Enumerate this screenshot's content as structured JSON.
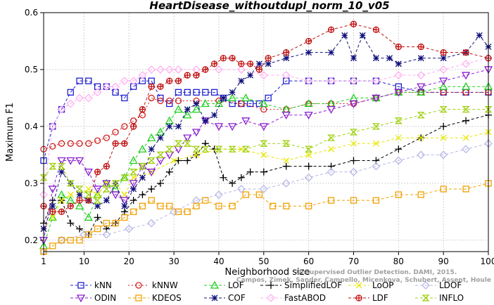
{
  "chart_data": {
    "type": "line",
    "title": "HeartDisease_withoutdupl_norm_10_v05",
    "xlabel": "Neighborhood size",
    "ylabel": "Maximum F1",
    "xlim": [
      1,
      100
    ],
    "ylim": [
      0.18,
      0.6
    ],
    "xticks": [
      1,
      10,
      20,
      30,
      40,
      50,
      60,
      70,
      80,
      90,
      100
    ],
    "yticks": [
      0.2,
      0.3,
      0.4,
      0.5,
      0.6
    ],
    "legend_placement": "bottom",
    "series": [
      {
        "name": "kNN",
        "color": "#1f1fd0",
        "marker": "square",
        "dash": "4,3",
        "x": [
          1,
          3,
          5,
          7,
          9,
          11,
          13,
          15,
          17,
          19,
          21,
          23,
          25,
          27,
          29,
          31,
          33,
          35,
          37,
          39,
          41,
          43,
          45,
          47,
          49,
          51,
          55,
          60,
          65,
          70,
          75,
          80,
          85,
          90,
          95,
          100
        ],
        "y": [
          0.34,
          0.4,
          0.43,
          0.46,
          0.48,
          0.48,
          0.47,
          0.47,
          0.46,
          0.45,
          0.47,
          0.48,
          0.48,
          0.45,
          0.44,
          0.46,
          0.46,
          0.46,
          0.46,
          0.46,
          0.45,
          0.44,
          0.44,
          0.44,
          0.44,
          0.45,
          0.48,
          0.48,
          0.48,
          0.48,
          0.48,
          0.47,
          0.46,
          0.46,
          0.46,
          0.46
        ]
      },
      {
        "name": "kNNW",
        "color": "#d01f1f",
        "marker": "circle",
        "dash": "2,3",
        "x": [
          1,
          3,
          5,
          7,
          9,
          11,
          13,
          15,
          17,
          19,
          21,
          23,
          25,
          27,
          29,
          31,
          35,
          40,
          45,
          50,
          55,
          60,
          65,
          70,
          75,
          80,
          85,
          90,
          95,
          100
        ],
        "y": [
          0.36,
          0.365,
          0.37,
          0.37,
          0.37,
          0.37,
          0.375,
          0.38,
          0.39,
          0.4,
          0.41,
          0.42,
          0.45,
          0.445,
          0.445,
          0.445,
          0.445,
          0.445,
          0.44,
          0.43,
          0.43,
          0.44,
          0.44,
          0.44,
          0.45,
          0.46,
          0.46,
          0.46,
          0.46,
          0.46
        ]
      },
      {
        "name": "LOF",
        "color": "#1fd01f",
        "marker": "triangle",
        "dash": "4,3",
        "x": [
          1,
          3,
          5,
          7,
          9,
          11,
          13,
          15,
          17,
          19,
          21,
          23,
          25,
          27,
          29,
          31,
          33,
          35,
          37,
          40,
          43,
          46,
          50,
          55,
          60,
          65,
          70,
          75,
          80,
          85,
          90,
          95,
          100
        ],
        "y": [
          0.19,
          0.24,
          0.28,
          0.27,
          0.26,
          0.24,
          0.28,
          0.3,
          0.29,
          0.31,
          0.34,
          0.36,
          0.38,
          0.39,
          0.41,
          0.43,
          0.42,
          0.43,
          0.44,
          0.44,
          0.45,
          0.45,
          0.44,
          0.43,
          0.44,
          0.44,
          0.45,
          0.45,
          0.46,
          0.46,
          0.47,
          0.47,
          0.47
        ]
      },
      {
        "name": "SimplifiedLOF",
        "color": "#000000",
        "marker": "plus",
        "dash": "4,3",
        "x": [
          1,
          3,
          5,
          7,
          9,
          11,
          13,
          15,
          17,
          19,
          21,
          23,
          25,
          27,
          29,
          31,
          33,
          35,
          37,
          39,
          41,
          43,
          45,
          47,
          50,
          55,
          60,
          65,
          70,
          75,
          80,
          85,
          90,
          95,
          100
        ],
        "y": [
          0.23,
          0.27,
          0.27,
          0.23,
          0.22,
          0.21,
          0.24,
          0.22,
          0.23,
          0.25,
          0.27,
          0.28,
          0.29,
          0.3,
          0.32,
          0.34,
          0.34,
          0.35,
          0.37,
          0.36,
          0.31,
          0.3,
          0.31,
          0.32,
          0.32,
          0.33,
          0.33,
          0.33,
          0.34,
          0.34,
          0.36,
          0.38,
          0.4,
          0.41,
          0.42
        ]
      },
      {
        "name": "LoOP",
        "color": "#e8e800",
        "marker": "x",
        "dash": "4,3",
        "x": [
          1,
          3,
          5,
          7,
          9,
          11,
          13,
          15,
          17,
          19,
          21,
          25,
          30,
          35,
          40,
          45,
          50,
          55,
          60,
          65,
          70,
          75,
          80,
          85,
          90,
          95,
          100
        ],
        "y": [
          0.22,
          0.24,
          0.27,
          0.28,
          0.28,
          0.29,
          0.28,
          0.3,
          0.3,
          0.28,
          0.31,
          0.32,
          0.34,
          0.35,
          0.36,
          0.36,
          0.35,
          0.34,
          0.35,
          0.36,
          0.37,
          0.37,
          0.38,
          0.38,
          0.38,
          0.38,
          0.39
        ]
      },
      {
        "name": "LDOF",
        "color": "#b8b8e8",
        "marker": "diamond",
        "dash": "4,3",
        "x": [
          1,
          5,
          10,
          15,
          20,
          25,
          30,
          35,
          40,
          45,
          50,
          55,
          60,
          65,
          70,
          75,
          80,
          85,
          90,
          95,
          100
        ],
        "y": [
          0.18,
          0.2,
          0.21,
          0.21,
          0.22,
          0.23,
          0.25,
          0.27,
          0.28,
          0.29,
          0.29,
          0.3,
          0.31,
          0.32,
          0.32,
          0.33,
          0.34,
          0.35,
          0.35,
          0.36,
          0.37
        ]
      },
      {
        "name": "ODIN",
        "color": "#8b1fd0",
        "marker": "triangle-down",
        "dash": "4,3",
        "x": [
          1,
          3,
          5,
          7,
          9,
          11,
          13,
          15,
          17,
          19,
          21,
          23,
          25,
          27,
          29,
          31,
          33,
          35,
          37,
          40,
          43,
          46,
          50,
          55,
          60,
          65,
          70,
          75,
          80,
          85,
          90,
          95,
          100
        ],
        "y": [
          0.2,
          0.29,
          0.34,
          0.34,
          0.34,
          0.32,
          0.29,
          0.3,
          0.28,
          0.27,
          0.3,
          0.33,
          0.32,
          0.34,
          0.35,
          0.36,
          0.38,
          0.39,
          0.41,
          0.4,
          0.4,
          0.41,
          0.4,
          0.42,
          0.42,
          0.43,
          0.44,
          0.45,
          0.46,
          0.47,
          0.48,
          0.49,
          0.5
        ]
      },
      {
        "name": "KDEOS",
        "color": "#f0a000",
        "marker": "square",
        "dash": "4,3",
        "x": [
          1,
          3,
          5,
          7,
          9,
          11,
          13,
          15,
          17,
          19,
          21,
          23,
          25,
          27,
          29,
          31,
          33,
          35,
          37,
          40,
          43,
          46,
          49,
          52,
          55,
          60,
          65,
          70,
          75,
          80,
          85,
          90,
          95,
          100
        ],
        "y": [
          0.18,
          0.19,
          0.2,
          0.2,
          0.2,
          0.21,
          0.22,
          0.23,
          0.23,
          0.24,
          0.25,
          0.26,
          0.27,
          0.26,
          0.26,
          0.25,
          0.25,
          0.26,
          0.27,
          0.26,
          0.26,
          0.28,
          0.28,
          0.26,
          0.26,
          0.26,
          0.27,
          0.27,
          0.27,
          0.28,
          0.28,
          0.29,
          0.29,
          0.3
        ]
      },
      {
        "name": "COF",
        "color": "#10107a",
        "marker": "asterisk",
        "dash": "4,3",
        "x": [
          1,
          3,
          5,
          7,
          9,
          11,
          13,
          15,
          17,
          19,
          21,
          23,
          25,
          27,
          29,
          31,
          33,
          35,
          37,
          39,
          41,
          43,
          45,
          47,
          49,
          51,
          55,
          60,
          65,
          68,
          70,
          72,
          75,
          78,
          80,
          85,
          90,
          95,
          98,
          100
        ],
        "y": [
          0.22,
          0.26,
          0.32,
          0.3,
          0.28,
          0.27,
          0.26,
          0.27,
          0.3,
          0.26,
          0.29,
          0.31,
          0.36,
          0.38,
          0.4,
          0.4,
          0.43,
          0.44,
          0.41,
          0.42,
          0.45,
          0.46,
          0.48,
          0.49,
          0.51,
          0.51,
          0.52,
          0.53,
          0.53,
          0.56,
          0.52,
          0.56,
          0.52,
          0.52,
          0.51,
          0.52,
          0.52,
          0.53,
          0.56,
          0.54
        ]
      },
      {
        "name": "FastABOD",
        "color": "#ffb0f0",
        "marker": "diamond",
        "dash": "4,3",
        "x": [
          1,
          3,
          5,
          7,
          9,
          11,
          13,
          15,
          17,
          19,
          21,
          23,
          25,
          27,
          29,
          31,
          35,
          40,
          45,
          50,
          55,
          60,
          65,
          70,
          75,
          80,
          85,
          90,
          95,
          100
        ],
        "y": [
          0.28,
          0.4,
          0.43,
          0.44,
          0.45,
          0.45,
          0.46,
          0.47,
          0.47,
          0.48,
          0.48,
          0.49,
          0.5,
          0.5,
          0.5,
          0.5,
          0.5,
          0.5,
          0.5,
          0.49,
          0.49,
          0.48,
          0.48,
          0.48,
          0.48,
          0.49,
          0.49,
          0.5,
          0.51,
          0.52
        ]
      },
      {
        "name": "LDF",
        "color": "#c01010",
        "marker": "circle-plus",
        "dash": "4,3",
        "x": [
          1,
          3,
          5,
          7,
          9,
          11,
          13,
          15,
          17,
          19,
          21,
          23,
          25,
          27,
          29,
          31,
          33,
          35,
          37,
          39,
          41,
          43,
          45,
          47,
          49,
          51,
          55,
          60,
          65,
          70,
          75,
          80,
          85,
          90,
          95,
          100
        ],
        "y": [
          0.26,
          0.25,
          0.25,
          0.26,
          0.27,
          0.27,
          0.32,
          0.33,
          0.37,
          0.37,
          0.4,
          0.43,
          0.47,
          0.47,
          0.48,
          0.48,
          0.49,
          0.49,
          0.5,
          0.51,
          0.52,
          0.52,
          0.51,
          0.51,
          0.5,
          0.52,
          0.53,
          0.55,
          0.57,
          0.58,
          0.57,
          0.54,
          0.54,
          0.53,
          0.53,
          0.52
        ]
      },
      {
        "name": "INFLO",
        "color": "#a0d010",
        "marker": "hourglass",
        "dash": "4,3",
        "x": [
          1,
          3,
          5,
          7,
          9,
          11,
          13,
          15,
          17,
          19,
          21,
          23,
          25,
          27,
          29,
          31,
          33,
          35,
          37,
          40,
          43,
          46,
          50,
          55,
          60,
          65,
          70,
          75,
          80,
          85,
          90,
          95,
          100
        ],
        "y": [
          0.31,
          0.33,
          0.33,
          0.3,
          0.29,
          0.28,
          0.27,
          0.29,
          0.3,
          0.31,
          0.32,
          0.33,
          0.34,
          0.35,
          0.36,
          0.37,
          0.37,
          0.36,
          0.36,
          0.36,
          0.36,
          0.36,
          0.37,
          0.37,
          0.36,
          0.38,
          0.39,
          0.4,
          0.41,
          0.42,
          0.43,
          0.43,
          0.43
        ]
      }
    ]
  },
  "watermark": {
    "line1": "Unsupervised Outlier Detection. DAMI, 2015.",
    "line2": "Campos, Zimek, Sander, Campello, Micenkova, Schubert, Assent, Houle"
  }
}
